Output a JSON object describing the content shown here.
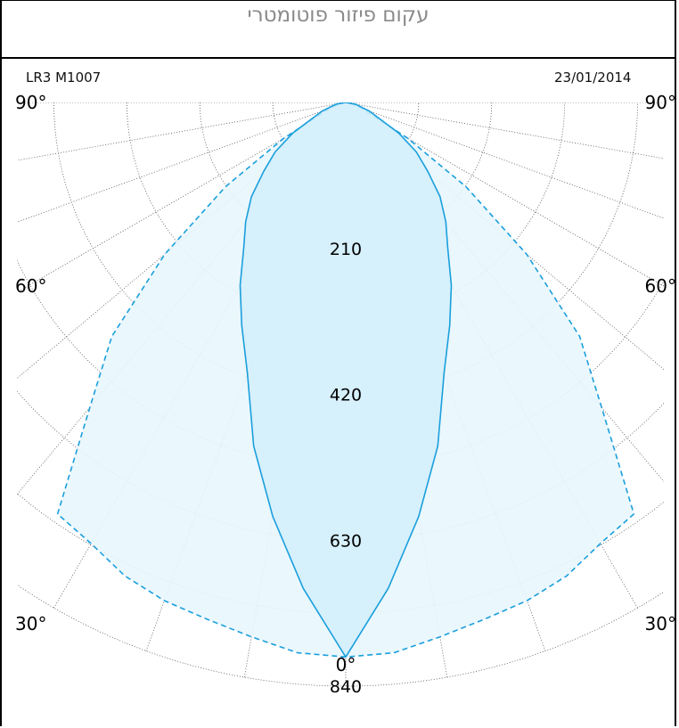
{
  "window": {
    "title": "עקום פיזור פוטומטרי"
  },
  "header": {
    "left_text": "LR3 M1007",
    "right_text": "23/01/2014"
  },
  "colors": {
    "curve1_line": "#1a9fdc",
    "curve1_fill": "#d2eefb",
    "curve2_line": "#1a9fdc",
    "curve2_fill": "#e8f6fd",
    "grid": "#555555"
  },
  "chart_data": {
    "type": "polar",
    "angle_range": [
      0,
      90
    ],
    "angle_labels": [
      {
        "angle": 90,
        "text": "90°"
      },
      {
        "angle": 60,
        "text": "60°"
      },
      {
        "angle": 30,
        "text": "30°"
      },
      {
        "angle": 0,
        "text": "0°"
      }
    ],
    "radial_max": 840,
    "radial_rings": [
      105,
      210,
      315,
      420,
      525,
      630,
      735,
      840
    ],
    "radial_labels": [
      {
        "value": 210,
        "text": "210"
      },
      {
        "value": 420,
        "text": "420"
      },
      {
        "value": 630,
        "text": "630"
      },
      {
        "value": 840,
        "text": "840"
      }
    ],
    "angular_grid_step": 10,
    "grid": true,
    "series": [
      {
        "style": "solid",
        "points": [
          {
            "angle": 0,
            "value": 798
          },
          {
            "angle": 5,
            "value": 702
          },
          {
            "angle": 10,
            "value": 605
          },
          {
            "angle": 15,
            "value": 512
          },
          {
            "angle": 20,
            "value": 414
          },
          {
            "angle": 25,
            "value": 354
          },
          {
            "angle": 30,
            "value": 304
          },
          {
            "angle": 35,
            "value": 256
          },
          {
            "angle": 40,
            "value": 224
          },
          {
            "angle": 45,
            "value": 192
          },
          {
            "angle": 50,
            "value": 154
          },
          {
            "angle": 55,
            "value": 124
          },
          {
            "angle": 60,
            "value": 88
          },
          {
            "angle": 70,
            "value": 36
          },
          {
            "angle": 80,
            "value": 14
          },
          {
            "angle": 90,
            "value": 0
          }
        ]
      },
      {
        "style": "dashed",
        "points": [
          {
            "angle": 0,
            "value": 798
          },
          {
            "angle": 5,
            "value": 795
          },
          {
            "angle": 10,
            "value": 781
          },
          {
            "angle": 15,
            "value": 770
          },
          {
            "angle": 20,
            "value": 763
          },
          {
            "angle": 25,
            "value": 752
          },
          {
            "angle": 30,
            "value": 733
          },
          {
            "angle": 35,
            "value": 723
          },
          {
            "angle": 40,
            "value": 573
          },
          {
            "angle": 45,
            "value": 476
          },
          {
            "angle": 50,
            "value": 340
          },
          {
            "angle": 55,
            "value": 211
          },
          {
            "angle": 60,
            "value": 103
          },
          {
            "angle": 70,
            "value": 25
          },
          {
            "angle": 80,
            "value": 7
          },
          {
            "angle": 90,
            "value": 0
          }
        ]
      }
    ]
  }
}
